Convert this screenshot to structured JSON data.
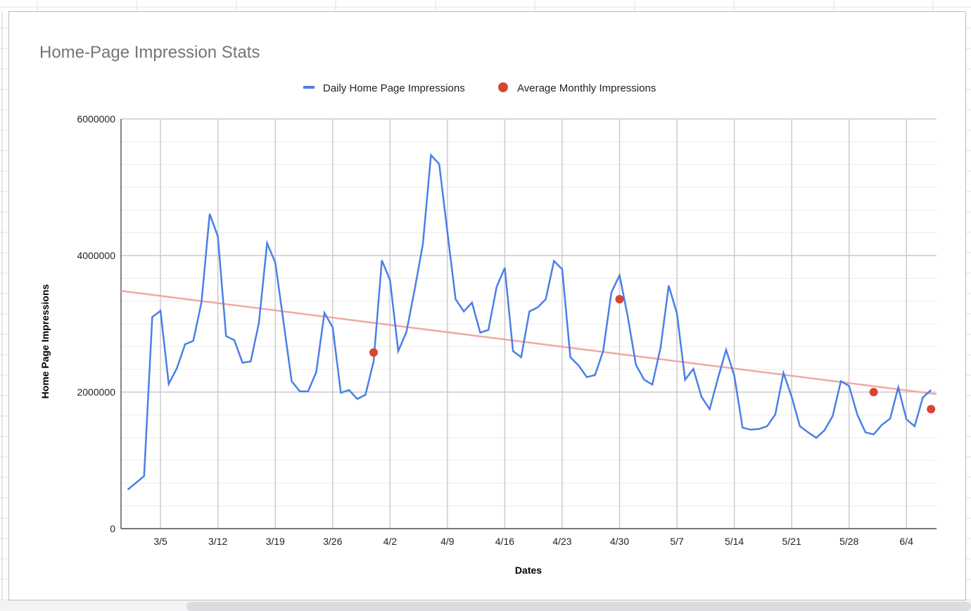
{
  "chart_data": {
    "type": "line",
    "title": "Home-Page Impression Stats",
    "xlabel": "Dates",
    "ylabel": "Home Page Impressions",
    "ylim": [
      0,
      6000000
    ],
    "yticks": [
      "0",
      "2000000",
      "4000000",
      "6000000"
    ],
    "xticks": [
      "3/5",
      "3/12",
      "3/19",
      "3/26",
      "4/2",
      "4/9",
      "4/16",
      "4/23",
      "4/30",
      "5/7",
      "5/14",
      "5/21",
      "5/28",
      "6/4"
    ],
    "grid": true,
    "legend_position": "top",
    "x_start": "3/1",
    "x_end": "6/7",
    "series": [
      {
        "name": "Daily Home Page Impressions",
        "type": "line",
        "color": "#4a7fe8",
        "x": [
          "3/1",
          "3/2",
          "3/3",
          "3/4",
          "3/5",
          "3/6",
          "3/7",
          "3/8",
          "3/9",
          "3/10",
          "3/11",
          "3/12",
          "3/13",
          "3/14",
          "3/15",
          "3/16",
          "3/17",
          "3/18",
          "3/19",
          "3/20",
          "3/21",
          "3/22",
          "3/23",
          "3/24",
          "3/25",
          "3/26",
          "3/27",
          "3/28",
          "3/29",
          "3/30",
          "3/31",
          "4/1",
          "4/2",
          "4/3",
          "4/4",
          "4/5",
          "4/6",
          "4/7",
          "4/8",
          "4/9",
          "4/10",
          "4/11",
          "4/12",
          "4/13",
          "4/14",
          "4/15",
          "4/16",
          "4/17",
          "4/18",
          "4/19",
          "4/20",
          "4/21",
          "4/22",
          "4/23",
          "4/24",
          "4/25",
          "4/26",
          "4/27",
          "4/28",
          "4/29",
          "4/30",
          "5/1",
          "5/2",
          "5/3",
          "5/4",
          "5/5",
          "5/6",
          "5/7",
          "5/8",
          "5/9",
          "5/10",
          "5/11",
          "5/12",
          "5/13",
          "5/14",
          "5/15",
          "5/16",
          "5/17",
          "5/18",
          "5/19",
          "5/20",
          "5/21",
          "5/22",
          "5/23",
          "5/24",
          "5/25",
          "5/26",
          "5/27",
          "5/28",
          "5/29",
          "5/30",
          "5/31",
          "6/1",
          "6/2",
          "6/3",
          "6/4",
          "6/5",
          "6/6",
          "6/7"
        ],
        "values": [
          570000,
          670000,
          770000,
          3100000,
          3190000,
          2120000,
          2350000,
          2700000,
          2750000,
          3320000,
          4610000,
          4280000,
          2820000,
          2760000,
          2430000,
          2450000,
          3010000,
          4180000,
          3900000,
          3030000,
          2160000,
          2010000,
          2010000,
          2290000,
          3160000,
          2950000,
          1990000,
          2030000,
          1900000,
          1960000,
          2450000,
          3930000,
          3640000,
          2600000,
          2880000,
          3500000,
          4160000,
          5470000,
          5340000,
          4340000,
          3360000,
          3180000,
          3310000,
          2870000,
          2910000,
          3540000,
          3820000,
          2600000,
          2510000,
          3180000,
          3240000,
          3360000,
          3920000,
          3800000,
          2510000,
          2390000,
          2220000,
          2250000,
          2600000,
          3460000,
          3710000,
          3110000,
          2400000,
          2180000,
          2110000,
          2650000,
          3560000,
          3150000,
          2180000,
          2340000,
          1930000,
          1750000,
          2200000,
          2620000,
          2240000,
          1480000,
          1450000,
          1460000,
          1500000,
          1670000,
          2280000,
          1930000,
          1500000,
          1410000,
          1330000,
          1440000,
          1650000,
          2160000,
          2090000,
          1670000,
          1410000,
          1380000,
          1520000,
          1610000,
          2070000,
          1600000,
          1500000,
          1920000,
          2030000
        ]
      },
      {
        "name": "Average Monthly Impressions",
        "type": "scatter",
        "color": "#d64532",
        "x": [
          "3/31",
          "4/30",
          "5/31",
          "6/7"
        ],
        "values": [
          2580000,
          3360000,
          2000000,
          1750000
        ]
      }
    ],
    "trendline": {
      "type": "linear",
      "color": "#eeaaa2",
      "x": [
        "3/1",
        "6/7"
      ],
      "values": [
        3470000,
        1980000
      ]
    }
  }
}
